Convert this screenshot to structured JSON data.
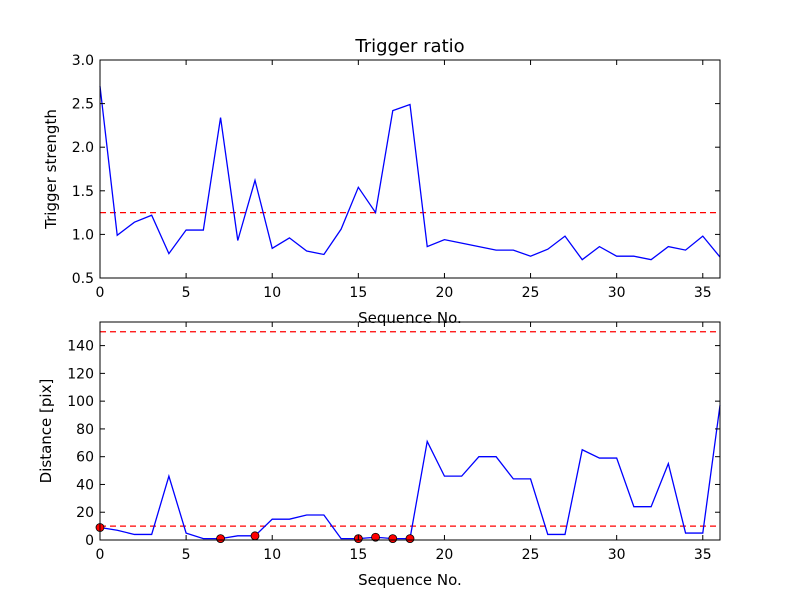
{
  "chart_data": [
    {
      "type": "line",
      "title": "Trigger ratio",
      "xlabel": "Sequence No.",
      "ylabel": "Trigger strength",
      "xlim": [
        0,
        36
      ],
      "ylim": [
        0.5,
        3.0
      ],
      "xticks": [
        0,
        5,
        10,
        15,
        20,
        25,
        30,
        35
      ],
      "yticks": [
        0.5,
        1.0,
        1.5,
        2.0,
        2.5,
        3.0
      ],
      "xtick_labels": [
        "0",
        "5",
        "10",
        "15",
        "20",
        "25",
        "30",
        "35"
      ],
      "ytick_labels": [
        "0.5",
        "1.0",
        "1.5",
        "2.0",
        "2.5",
        "3.0"
      ],
      "grid": false,
      "series": [
        {
          "color": "#0000ff",
          "x": [
            0,
            1,
            2,
            3,
            4,
            5,
            6,
            7,
            8,
            9,
            10,
            11,
            12,
            13,
            14,
            15,
            16,
            17,
            18,
            19,
            20,
            21,
            22,
            23,
            24,
            25,
            26,
            27,
            28,
            29,
            30,
            31,
            32,
            33,
            34,
            35,
            36
          ],
          "values": [
            2.7,
            0.99,
            1.14,
            1.22,
            0.78,
            1.05,
            1.05,
            2.34,
            0.93,
            1.62,
            0.84,
            0.96,
            0.81,
            0.77,
            1.06,
            1.54,
            1.25,
            2.42,
            2.49,
            0.86,
            0.94,
            0.9,
            0.86,
            0.82,
            0.82,
            0.75,
            0.83,
            0.98,
            0.71,
            0.86,
            0.75,
            0.75,
            0.71,
            0.86,
            0.82,
            0.98,
            0.74
          ]
        }
      ],
      "threshold": {
        "value": 1.25,
        "color": "#ff0000",
        "style": "dashed"
      }
    },
    {
      "type": "line",
      "title": "",
      "xlabel": "Sequence No.",
      "ylabel": "Distance [pix]",
      "xlim": [
        0,
        36
      ],
      "ylim": [
        0,
        157
      ],
      "xticks": [
        0,
        5,
        10,
        15,
        20,
        25,
        30,
        35
      ],
      "yticks": [
        0,
        20,
        40,
        60,
        80,
        100,
        120,
        140
      ],
      "xtick_labels": [
        "0",
        "5",
        "10",
        "15",
        "20",
        "25",
        "30",
        "35"
      ],
      "ytick_labels": [
        "0",
        "20",
        "40",
        "60",
        "80",
        "100",
        "120",
        "140"
      ],
      "grid": false,
      "series": [
        {
          "color": "#0000ff",
          "x": [
            0,
            1,
            2,
            3,
            4,
            5,
            6,
            7,
            8,
            9,
            10,
            11,
            12,
            13,
            14,
            15,
            16,
            17,
            18,
            19,
            20,
            21,
            22,
            23,
            24,
            25,
            26,
            27,
            28,
            29,
            30,
            31,
            32,
            33,
            34,
            35,
            36
          ],
          "values": [
            9,
            7,
            4,
            4,
            46,
            5,
            1,
            1,
            3,
            3,
            15,
            15,
            18,
            18,
            1,
            1,
            2,
            1,
            1,
            71,
            46,
            46,
            60,
            60,
            44,
            44,
            4,
            4,
            65,
            59,
            59,
            24,
            24,
            55,
            5,
            5,
            97
          ]
        }
      ],
      "markers": {
        "color": "#ff0000",
        "x": [
          0,
          7,
          9,
          15,
          16,
          17,
          18
        ],
        "values": [
          9,
          1,
          3,
          1,
          2,
          1,
          1
        ]
      },
      "thresholds": [
        {
          "value": 10,
          "color": "#ff0000",
          "style": "dashed"
        },
        {
          "value": 150,
          "color": "#ff0000",
          "style": "dashed"
        }
      ]
    }
  ]
}
